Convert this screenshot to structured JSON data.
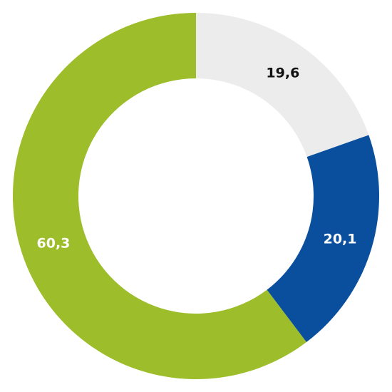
{
  "chart_data": {
    "type": "donut",
    "values": [
      19.6,
      20.1,
      60.3
    ],
    "value_labels": [
      "19,6",
      "20,1",
      "60,3"
    ],
    "colors": [
      "#ececec",
      "#0a4f9e",
      "#9dbd2a"
    ],
    "label_colors": [
      "#111111",
      "#ffffff",
      "#ffffff"
    ]
  }
}
